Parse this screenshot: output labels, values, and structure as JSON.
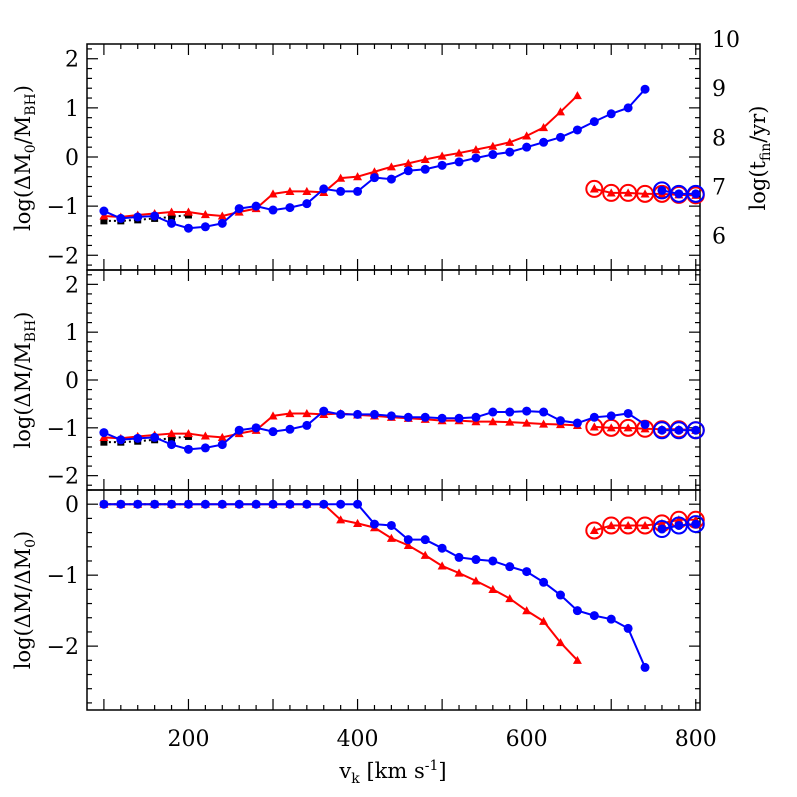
{
  "colors": {
    "red": "#ff0000",
    "blue": "#0000ff",
    "black": "#000000"
  },
  "chart_data": [
    {
      "panel": "top",
      "type": "line",
      "ylabel_main": "log(ΔM",
      "ylabel_sub": "0",
      "ylabel_main2": "/M",
      "ylabel_sub2": "BH",
      "ylabel_close": ")",
      "right_label_main": "log(t",
      "right_label_sub": "fin",
      "right_label_close": "/yr)",
      "ylim": [
        -2.3,
        2.3
      ],
      "right_ylim": [
        5.3,
        9.9
      ],
      "yticks": [
        -2,
        -1,
        0,
        1,
        2
      ],
      "right_yticks": [
        6,
        7,
        8,
        9,
        10
      ],
      "xlim": [
        80,
        805
      ],
      "series": [
        {
          "color": "black",
          "marker": "square",
          "dotted": true,
          "x": [
            100,
            120,
            140,
            160,
            180,
            200
          ],
          "y": [
            -1.3,
            -1.3,
            -1.28,
            -1.25,
            -1.22,
            -1.18
          ]
        },
        {
          "color": "red",
          "marker": "triangle",
          "x": [
            100,
            120,
            140,
            160,
            180,
            200,
            220,
            240,
            260,
            280,
            300,
            320,
            340,
            360,
            380,
            400,
            420,
            440,
            460,
            480,
            500,
            520,
            540,
            560,
            580,
            600,
            620,
            640,
            660
          ],
          "y": [
            -1.2,
            -1.22,
            -1.18,
            -1.15,
            -1.12,
            -1.12,
            -1.17,
            -1.2,
            -1.12,
            -1.05,
            -0.75,
            -0.7,
            -0.7,
            -0.72,
            -0.43,
            -0.4,
            -0.3,
            -0.2,
            -0.13,
            -0.05,
            0.02,
            0.08,
            0.15,
            0.22,
            0.3,
            0.43,
            0.6,
            0.92,
            1.25
          ]
        },
        {
          "color": "red",
          "marker": "triangle",
          "circled": true,
          "x": [
            680,
            700,
            720,
            740,
            760,
            780,
            800
          ],
          "y": [
            -0.65,
            -0.73,
            -0.73,
            -0.75,
            -0.75,
            -0.77,
            -0.78
          ]
        },
        {
          "color": "blue",
          "marker": "circle",
          "x": [
            100,
            120,
            140,
            160,
            180,
            200,
            220,
            240,
            260,
            280,
            300,
            320,
            340,
            360,
            380,
            400,
            420,
            440,
            460,
            480,
            500,
            520,
            540,
            560,
            580,
            600,
            620,
            640,
            660,
            680,
            700,
            720,
            740
          ],
          "y": [
            -1.1,
            -1.25,
            -1.22,
            -1.2,
            -1.35,
            -1.45,
            -1.42,
            -1.35,
            -1.05,
            -1.0,
            -1.08,
            -1.03,
            -0.95,
            -0.65,
            -0.7,
            -0.7,
            -0.42,
            -0.45,
            -0.28,
            -0.25,
            -0.17,
            -0.1,
            -0.02,
            0.05,
            0.1,
            0.2,
            0.3,
            0.4,
            0.55,
            0.72,
            0.88,
            1.0,
            1.38
          ]
        },
        {
          "color": "blue",
          "marker": "circle",
          "circled": true,
          "x": [
            760,
            780,
            800
          ],
          "y": [
            -0.68,
            -0.75,
            -0.75
          ]
        }
      ]
    },
    {
      "panel": "middle",
      "type": "line",
      "ylabel_main": "log(ΔM/M",
      "ylabel_sub": "BH",
      "ylabel_close": ")",
      "ylim": [
        -2.3,
        2.3
      ],
      "yticks": [
        -2,
        -1,
        0,
        1,
        2
      ],
      "xlim": [
        80,
        805
      ],
      "series": [
        {
          "color": "black",
          "marker": "square",
          "dotted": true,
          "x": [
            100,
            120,
            140,
            160,
            180,
            200
          ],
          "y": [
            -1.3,
            -1.3,
            -1.28,
            -1.25,
            -1.22,
            -1.18
          ]
        },
        {
          "color": "red",
          "marker": "triangle",
          "x": [
            100,
            120,
            140,
            160,
            180,
            200,
            220,
            240,
            260,
            280,
            300,
            320,
            340,
            360,
            380,
            400,
            420,
            440,
            460,
            480,
            500,
            520,
            540,
            560,
            580,
            600,
            620,
            640,
            660
          ],
          "y": [
            -1.2,
            -1.22,
            -1.18,
            -1.15,
            -1.12,
            -1.12,
            -1.17,
            -1.2,
            -1.12,
            -1.05,
            -0.75,
            -0.7,
            -0.7,
            -0.72,
            -0.7,
            -0.73,
            -0.75,
            -0.78,
            -0.8,
            -0.82,
            -0.85,
            -0.85,
            -0.87,
            -0.87,
            -0.88,
            -0.9,
            -0.92,
            -0.93,
            -0.95
          ]
        },
        {
          "color": "red",
          "marker": "triangle",
          "circled": true,
          "x": [
            680,
            700,
            720,
            740,
            760,
            780,
            800
          ],
          "y": [
            -0.98,
            -1.0,
            -1.0,
            -1.02,
            -1.03,
            -1.03,
            -1.05
          ]
        },
        {
          "color": "blue",
          "marker": "circle",
          "x": [
            100,
            120,
            140,
            160,
            180,
            200,
            220,
            240,
            260,
            280,
            300,
            320,
            340,
            360,
            380,
            400,
            420,
            440,
            460,
            480,
            500,
            520,
            540,
            560,
            580,
            600,
            620,
            640,
            660,
            680,
            700,
            720,
            740
          ],
          "y": [
            -1.1,
            -1.25,
            -1.22,
            -1.2,
            -1.35,
            -1.45,
            -1.42,
            -1.35,
            -1.05,
            -1.0,
            -1.08,
            -1.03,
            -0.95,
            -0.65,
            -0.72,
            -0.72,
            -0.72,
            -0.75,
            -0.78,
            -0.78,
            -0.8,
            -0.8,
            -0.78,
            -0.67,
            -0.67,
            -0.65,
            -0.67,
            -0.85,
            -0.9,
            -0.78,
            -0.75,
            -0.7,
            -0.93
          ]
        },
        {
          "color": "blue",
          "marker": "circle",
          "circled": true,
          "x": [
            760,
            780,
            800
          ],
          "y": [
            -1.05,
            -1.05,
            -1.05
          ]
        }
      ]
    },
    {
      "panel": "bottom",
      "type": "line",
      "ylabel_main": "log(ΔM/ΔM",
      "ylabel_sub": "0",
      "ylabel_close": ")",
      "xlabel_main": "v",
      "xlabel_sub": "k",
      "xlabel_rest": " [km s",
      "xlabel_sup": "-1",
      "xlabel_close": "]",
      "ylim": [
        -2.9,
        0.2
      ],
      "yticks": [
        -2,
        -1,
        0
      ],
      "xticks": [
        200,
        400,
        600,
        800
      ],
      "xlim": [
        80,
        805
      ],
      "series": [
        {
          "color": "black",
          "marker": "square",
          "dotted": true,
          "x": [
            100,
            120,
            140,
            160,
            180,
            200
          ],
          "y": [
            0,
            0,
            0,
            0,
            0,
            0
          ]
        },
        {
          "color": "red",
          "marker": "triangle",
          "x": [
            100,
            120,
            140,
            160,
            180,
            200,
            220,
            240,
            260,
            280,
            300,
            320,
            340,
            360,
            380,
            400,
            420,
            440,
            460,
            480,
            500,
            520,
            540,
            560,
            580,
            600,
            620,
            640,
            660
          ],
          "y": [
            0,
            0,
            0,
            0,
            0,
            0,
            0,
            0,
            0,
            0,
            0,
            0,
            0,
            0,
            -0.22,
            -0.27,
            -0.33,
            -0.48,
            -0.58,
            -0.72,
            -0.87,
            -0.97,
            -1.08,
            -1.2,
            -1.33,
            -1.5,
            -1.65,
            -1.95,
            -2.2
          ]
        },
        {
          "color": "red",
          "marker": "triangle",
          "circled": true,
          "x": [
            680,
            700,
            720,
            740,
            760,
            780,
            800
          ],
          "y": [
            -0.37,
            -0.3,
            -0.3,
            -0.3,
            -0.27,
            -0.22,
            -0.22
          ]
        },
        {
          "color": "blue",
          "marker": "circle",
          "x": [
            100,
            120,
            140,
            160,
            180,
            200,
            220,
            240,
            260,
            280,
            300,
            320,
            340,
            360,
            380,
            400,
            420,
            440,
            460,
            480,
            500,
            520,
            540,
            560,
            580,
            600,
            620,
            640,
            660,
            680,
            700,
            720,
            740
          ],
          "y": [
            0,
            0,
            0,
            0,
            0,
            0,
            0,
            0,
            0,
            0,
            0,
            0,
            0,
            0,
            0,
            0,
            -0.28,
            -0.3,
            -0.5,
            -0.5,
            -0.62,
            -0.75,
            -0.78,
            -0.8,
            -0.88,
            -0.95,
            -1.1,
            -1.28,
            -1.5,
            -1.57,
            -1.62,
            -1.75,
            -2.3
          ]
        },
        {
          "color": "blue",
          "marker": "circle",
          "circled": true,
          "x": [
            760,
            780,
            800
          ],
          "y": [
            -0.35,
            -0.3,
            -0.28
          ]
        }
      ]
    }
  ]
}
